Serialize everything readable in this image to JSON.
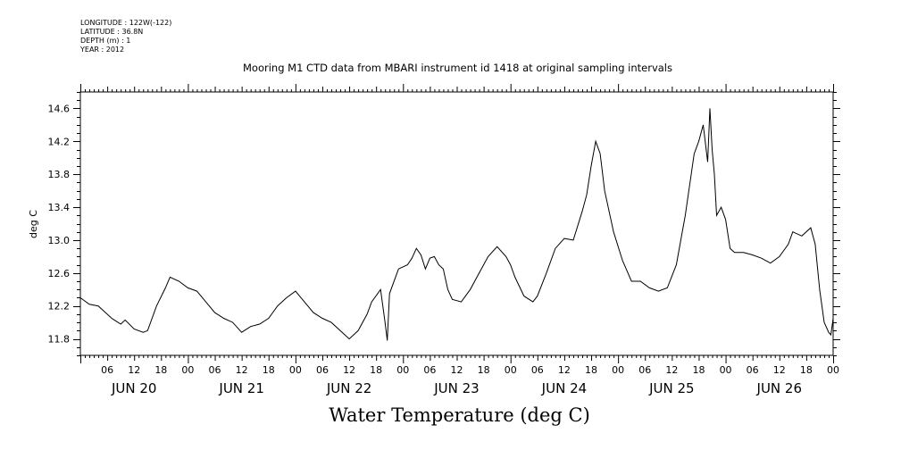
{
  "meta": {
    "longitude": "LONGITUDE : 122W(-122)",
    "latitude": "LATITUDE : 36.8N",
    "depth": "DEPTH (m) : 1",
    "year": "YEAR : 2012"
  },
  "chart_data": {
    "type": "line",
    "title": "Mooring M1 CTD data from MBARI instrument id 1418 at original sampling intervals",
    "main_title": "Water Temperature (deg C)",
    "ylabel": "deg C",
    "xlabel": "",
    "ylim": [
      11.6,
      14.8
    ],
    "xlim_hours": [
      0,
      168
    ],
    "yticks": [
      11.8,
      12.2,
      12.6,
      13.0,
      13.4,
      13.8,
      14.2,
      14.6
    ],
    "ytick_labels": [
      "11.8",
      "12.2",
      "12.6",
      "13.0",
      "13.4",
      "13.8",
      "14.2",
      "14.6"
    ],
    "hour_tick_labels": [
      "06",
      "12",
      "18",
      "00",
      "06",
      "12",
      "18",
      "00",
      "06",
      "12",
      "18",
      "00",
      "06",
      "12",
      "18",
      "00",
      "06",
      "12",
      "18",
      "00",
      "06",
      "12",
      "18",
      "00",
      "06",
      "12",
      "18",
      "00"
    ],
    "day_labels": [
      "JUN 20",
      "JUN 21",
      "JUN 22",
      "JUN 23",
      "JUN 24",
      "JUN 25",
      "JUN 26"
    ],
    "grid": false,
    "series": [
      {
        "x": [
          "Jun 20 00:00",
          "Jun 20 02:00",
          "Jun 20 04:00",
          "Jun 20 07:00",
          "Jun 20 09:00",
          "Jun 20 10:00",
          "Jun 20 12:00",
          "Jun 20 14:00",
          "Jun 20 15:00",
          "Jun 20 17:00",
          "Jun 20 19:00",
          "Jun 20 20:00",
          "Jun 20 22:00",
          "Jun 21 00:00",
          "Jun 21 02:00",
          "Jun 21 04:00",
          "Jun 21 06:00",
          "Jun 21 08:00",
          "Jun 21 10:00",
          "Jun 21 12:00",
          "Jun 21 14:00",
          "Jun 21 16:00",
          "Jun 21 18:00",
          "Jun 21 20:00",
          "Jun 21 22:00",
          "Jun 22 00:00",
          "Jun 22 02:00",
          "Jun 22 04:00",
          "Jun 22 06:00",
          "Jun 22 08:00",
          "Jun 22 10:00",
          "Jun 22 12:00",
          "Jun 22 14:00",
          "Jun 22 16:00",
          "Jun 22 17:00",
          "Jun 22 19:00",
          "Jun 22 20:00",
          "Jun 22 20:30",
          "Jun 22 21:00",
          "Jun 22 23:00",
          "Jun 23 01:00",
          "Jun 23 02:00",
          "Jun 23 03:00",
          "Jun 23 04:00",
          "Jun 23 05:00",
          "Jun 23 06:00",
          "Jun 23 07:00",
          "Jun 23 08:00",
          "Jun 23 09:00",
          "Jun 23 10:00",
          "Jun 23 11:00",
          "Jun 23 13:00",
          "Jun 23 15:00",
          "Jun 23 17:00",
          "Jun 23 19:00",
          "Jun 23 21:00",
          "Jun 23 23:00",
          "Jun 24 00:00",
          "Jun 24 01:00",
          "Jun 24 03:00",
          "Jun 24 05:00",
          "Jun 24 06:00",
          "Jun 24 08:00",
          "Jun 24 10:00",
          "Jun 24 12:00",
          "Jun 24 14:00",
          "Jun 24 16:00",
          "Jun 24 17:00",
          "Jun 24 18:00",
          "Jun 24 19:00",
          "Jun 24 20:00",
          "Jun 24 21:00",
          "Jun 24 23:00",
          "Jun 25 01:00",
          "Jun 25 03:00",
          "Jun 25 05:00",
          "Jun 25 07:00",
          "Jun 25 09:00",
          "Jun 25 11:00",
          "Jun 25 13:00",
          "Jun 25 15:00",
          "Jun 25 17:00",
          "Jun 25 18:00",
          "Jun 25 19:00",
          "Jun 25 20:00",
          "Jun 25 20:30",
          "Jun 25 21:00",
          "Jun 25 21:30",
          "Jun 25 22:00",
          "Jun 25 23:00",
          "Jun 26 00:00",
          "Jun 26 01:00",
          "Jun 26 02:00",
          "Jun 26 04:00",
          "Jun 26 06:00",
          "Jun 26 08:00",
          "Jun 26 10:00",
          "Jun 26 12:00",
          "Jun 26 14:00",
          "Jun 26 15:00",
          "Jun 26 17:00",
          "Jun 26 19:00",
          "Jun 26 20:00",
          "Jun 26 21:00",
          "Jun 26 22:00",
          "Jun 26 23:00",
          "Jun 26 23:30",
          "Jun 27 00:00"
        ],
        "values": [
          12.3,
          12.22,
          12.2,
          12.05,
          11.98,
          12.03,
          11.92,
          11.88,
          11.9,
          12.2,
          12.42,
          12.55,
          12.5,
          12.42,
          12.38,
          12.25,
          12.12,
          12.05,
          12.0,
          11.88,
          11.95,
          11.98,
          12.05,
          12.2,
          12.3,
          12.38,
          12.25,
          12.12,
          12.05,
          12.0,
          11.9,
          11.8,
          11.9,
          12.1,
          12.25,
          12.4,
          12.0,
          11.78,
          12.35,
          12.65,
          12.7,
          12.78,
          12.9,
          12.82,
          12.65,
          12.78,
          12.8,
          12.7,
          12.65,
          12.4,
          12.28,
          12.25,
          12.4,
          12.6,
          12.8,
          12.92,
          12.8,
          12.7,
          12.55,
          12.32,
          12.25,
          12.32,
          12.6,
          12.9,
          13.02,
          13.0,
          13.35,
          13.55,
          13.9,
          14.2,
          14.05,
          13.6,
          13.1,
          12.75,
          12.5,
          12.5,
          12.42,
          12.38,
          12.42,
          12.7,
          13.3,
          14.05,
          14.2,
          14.4,
          13.95,
          14.6,
          14.1,
          13.8,
          13.3,
          13.4,
          13.25,
          12.9,
          12.85,
          12.85,
          12.82,
          12.78,
          12.72,
          12.8,
          12.95,
          13.1,
          13.05,
          13.15,
          12.95,
          12.4,
          12.0,
          11.88,
          11.85,
          12.05
        ]
      }
    ]
  }
}
